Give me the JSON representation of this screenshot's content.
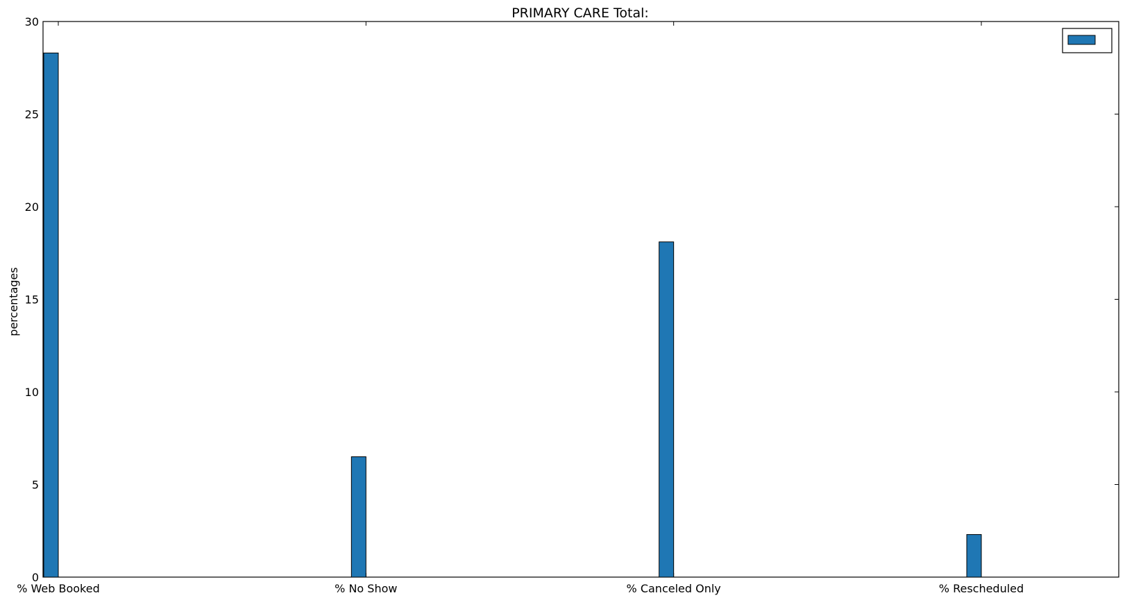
{
  "chart_data": {
    "type": "bar",
    "title": "PRIMARY CARE Total:",
    "xlabel": "",
    "ylabel": "percentages",
    "categories": [
      "% Web Booked",
      "% No Show",
      "% Canceled Only",
      "% Rescheduled"
    ],
    "values": [
      28.3,
      6.5,
      18.1,
      2.3
    ],
    "ylim": [
      0,
      30
    ],
    "yticks": [
      0,
      5,
      10,
      15,
      20,
      25,
      30
    ],
    "grid": false,
    "legend": {
      "placement": "top-right",
      "entries": [
        ""
      ]
    },
    "colors": {
      "bar": "#1f77b4",
      "bar_edge": "#000000"
    }
  }
}
